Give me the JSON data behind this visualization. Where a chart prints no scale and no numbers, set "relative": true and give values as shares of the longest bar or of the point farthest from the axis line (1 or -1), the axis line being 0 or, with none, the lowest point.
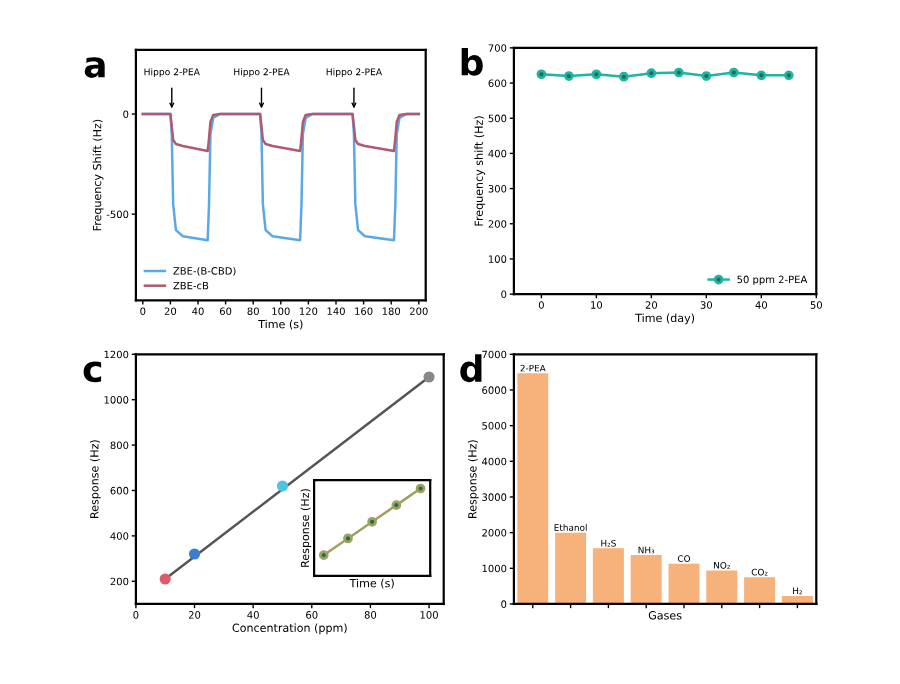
{
  "chart_data": [
    {
      "type": "line",
      "xlabel": "Time (s)",
      "ylabel": "Frequency Shift (Hz)",
      "xlim": [
        -5,
        205
      ],
      "ylim": [
        -930,
        320
      ],
      "xticks": [
        0,
        20,
        40,
        60,
        80,
        100,
        120,
        140,
        160,
        180,
        200
      ],
      "yticks": [
        0,
        -500
      ],
      "legend": "bottom left",
      "grid": false,
      "marker": "none",
      "x": [
        0,
        20,
        21,
        22,
        24,
        29,
        47,
        48,
        49,
        51,
        56,
        85,
        86,
        87,
        89,
        94,
        114,
        115,
        116,
        118,
        123,
        152,
        153,
        154,
        156,
        161,
        182,
        183,
        184,
        186,
        191,
        200
      ],
      "series": [
        {
          "name": "ZBE-(B-CBD)",
          "color": "#5aa9e6",
          "values": [
            0,
            0,
            -100,
            -450,
            -580,
            -610,
            -630,
            -450,
            -100,
            -20,
            0,
            0,
            -100,
            -450,
            -580,
            -610,
            -630,
            -450,
            -100,
            -20,
            0,
            0,
            -100,
            -450,
            -580,
            -610,
            -630,
            -450,
            -100,
            -20,
            0,
            0
          ]
        },
        {
          "name": "ZBE-cB",
          "color": "#b05a70",
          "values": [
            0,
            0,
            -60,
            -130,
            -150,
            -160,
            -185,
            -120,
            -40,
            -5,
            0,
            0,
            -60,
            -130,
            -150,
            -160,
            -185,
            -120,
            -40,
            -5,
            0,
            0,
            -60,
            -130,
            -150,
            -160,
            -185,
            -120,
            -40,
            -5,
            0,
            0
          ]
        }
      ],
      "annotations": [
        "a",
        {
          "text": "Hippo 2-PEA",
          "x": 21,
          "y": 0
        },
        {
          "text": "Hippo 2-PEA",
          "x": 86,
          "y": 0
        },
        {
          "text": "Hippo 2-PEA",
          "x": 153,
          "y": 0
        }
      ]
    },
    {
      "type": "line",
      "xlabel": "Time (day)",
      "ylabel": "Frequency shift (Hz)",
      "xlim": [
        -5,
        50
      ],
      "ylim": [
        0,
        700
      ],
      "xticks": [
        0,
        10,
        20,
        30,
        40,
        50
      ],
      "yticks": [
        0,
        100,
        200,
        300,
        400,
        500,
        600,
        700
      ],
      "legend": "bottom right",
      "grid": false,
      "marker": "circle",
      "x": [
        0,
        5,
        10,
        15,
        20,
        25,
        30,
        35,
        40,
        45
      ],
      "series": [
        {
          "name": "50 ppm 2-PEA",
          "color": "#1fb5a0",
          "values": [
            625,
            620,
            625,
            618,
            628,
            630,
            620,
            630,
            622,
            622
          ]
        }
      ],
      "annotations": [
        "b"
      ]
    },
    {
      "type": "scatter",
      "xlabel": "Concentration (ppm)",
      "ylabel": "Response (Hz)",
      "xlim": [
        0,
        105
      ],
      "ylim": [
        100,
        1200
      ],
      "xticks": [
        0,
        20,
        40,
        60,
        80,
        100
      ],
      "yticks": [
        200,
        400,
        600,
        800,
        1000,
        1200
      ],
      "grid": false,
      "marker": "circle",
      "series": [
        {
          "type": "line",
          "color": "#555555",
          "x": [
            10,
            100
          ],
          "values": [
            210,
            1100
          ]
        },
        {
          "type": "scatter",
          "x": [
            10,
            20,
            50,
            100
          ],
          "colors": [
            "#e05a6a",
            "#3a7ecf",
            "#4fc3e0",
            "#888888"
          ],
          "values": [
            210,
            320,
            620,
            1100
          ]
        }
      ],
      "annotations": [
        "c"
      ]
    },
    {
      "type": "line",
      "relative": true,
      "xlabel": "Time (s)",
      "ylabel": "Response (Hz)",
      "marker": "circle",
      "grid": false,
      "categories": [
        null,
        null,
        null,
        null,
        null
      ],
      "series": [
        {
          "color": "#a0a060",
          "values": [
            0.2,
            0.4,
            0.6,
            0.8,
            1.0
          ]
        }
      ]
    },
    {
      "type": "bar",
      "xlabel": "Gases",
      "ylabel": "Response (Hz)",
      "ylim": [
        0,
        7000
      ],
      "yticks": [
        0,
        1000,
        2000,
        3000,
        4000,
        5000,
        6000,
        7000
      ],
      "tick_labels": "y",
      "grid": false,
      "categories": [
        "2-PEA",
        "Ethanol",
        "H₂S",
        "NH₃",
        "CO",
        "NO₂",
        "CO₂",
        "H₂"
      ],
      "values": [
        6470,
        2000,
        1560,
        1370,
        1130,
        940,
        750,
        225
      ],
      "color": "#f6b27a",
      "annotations": [
        "d"
      ]
    }
  ]
}
